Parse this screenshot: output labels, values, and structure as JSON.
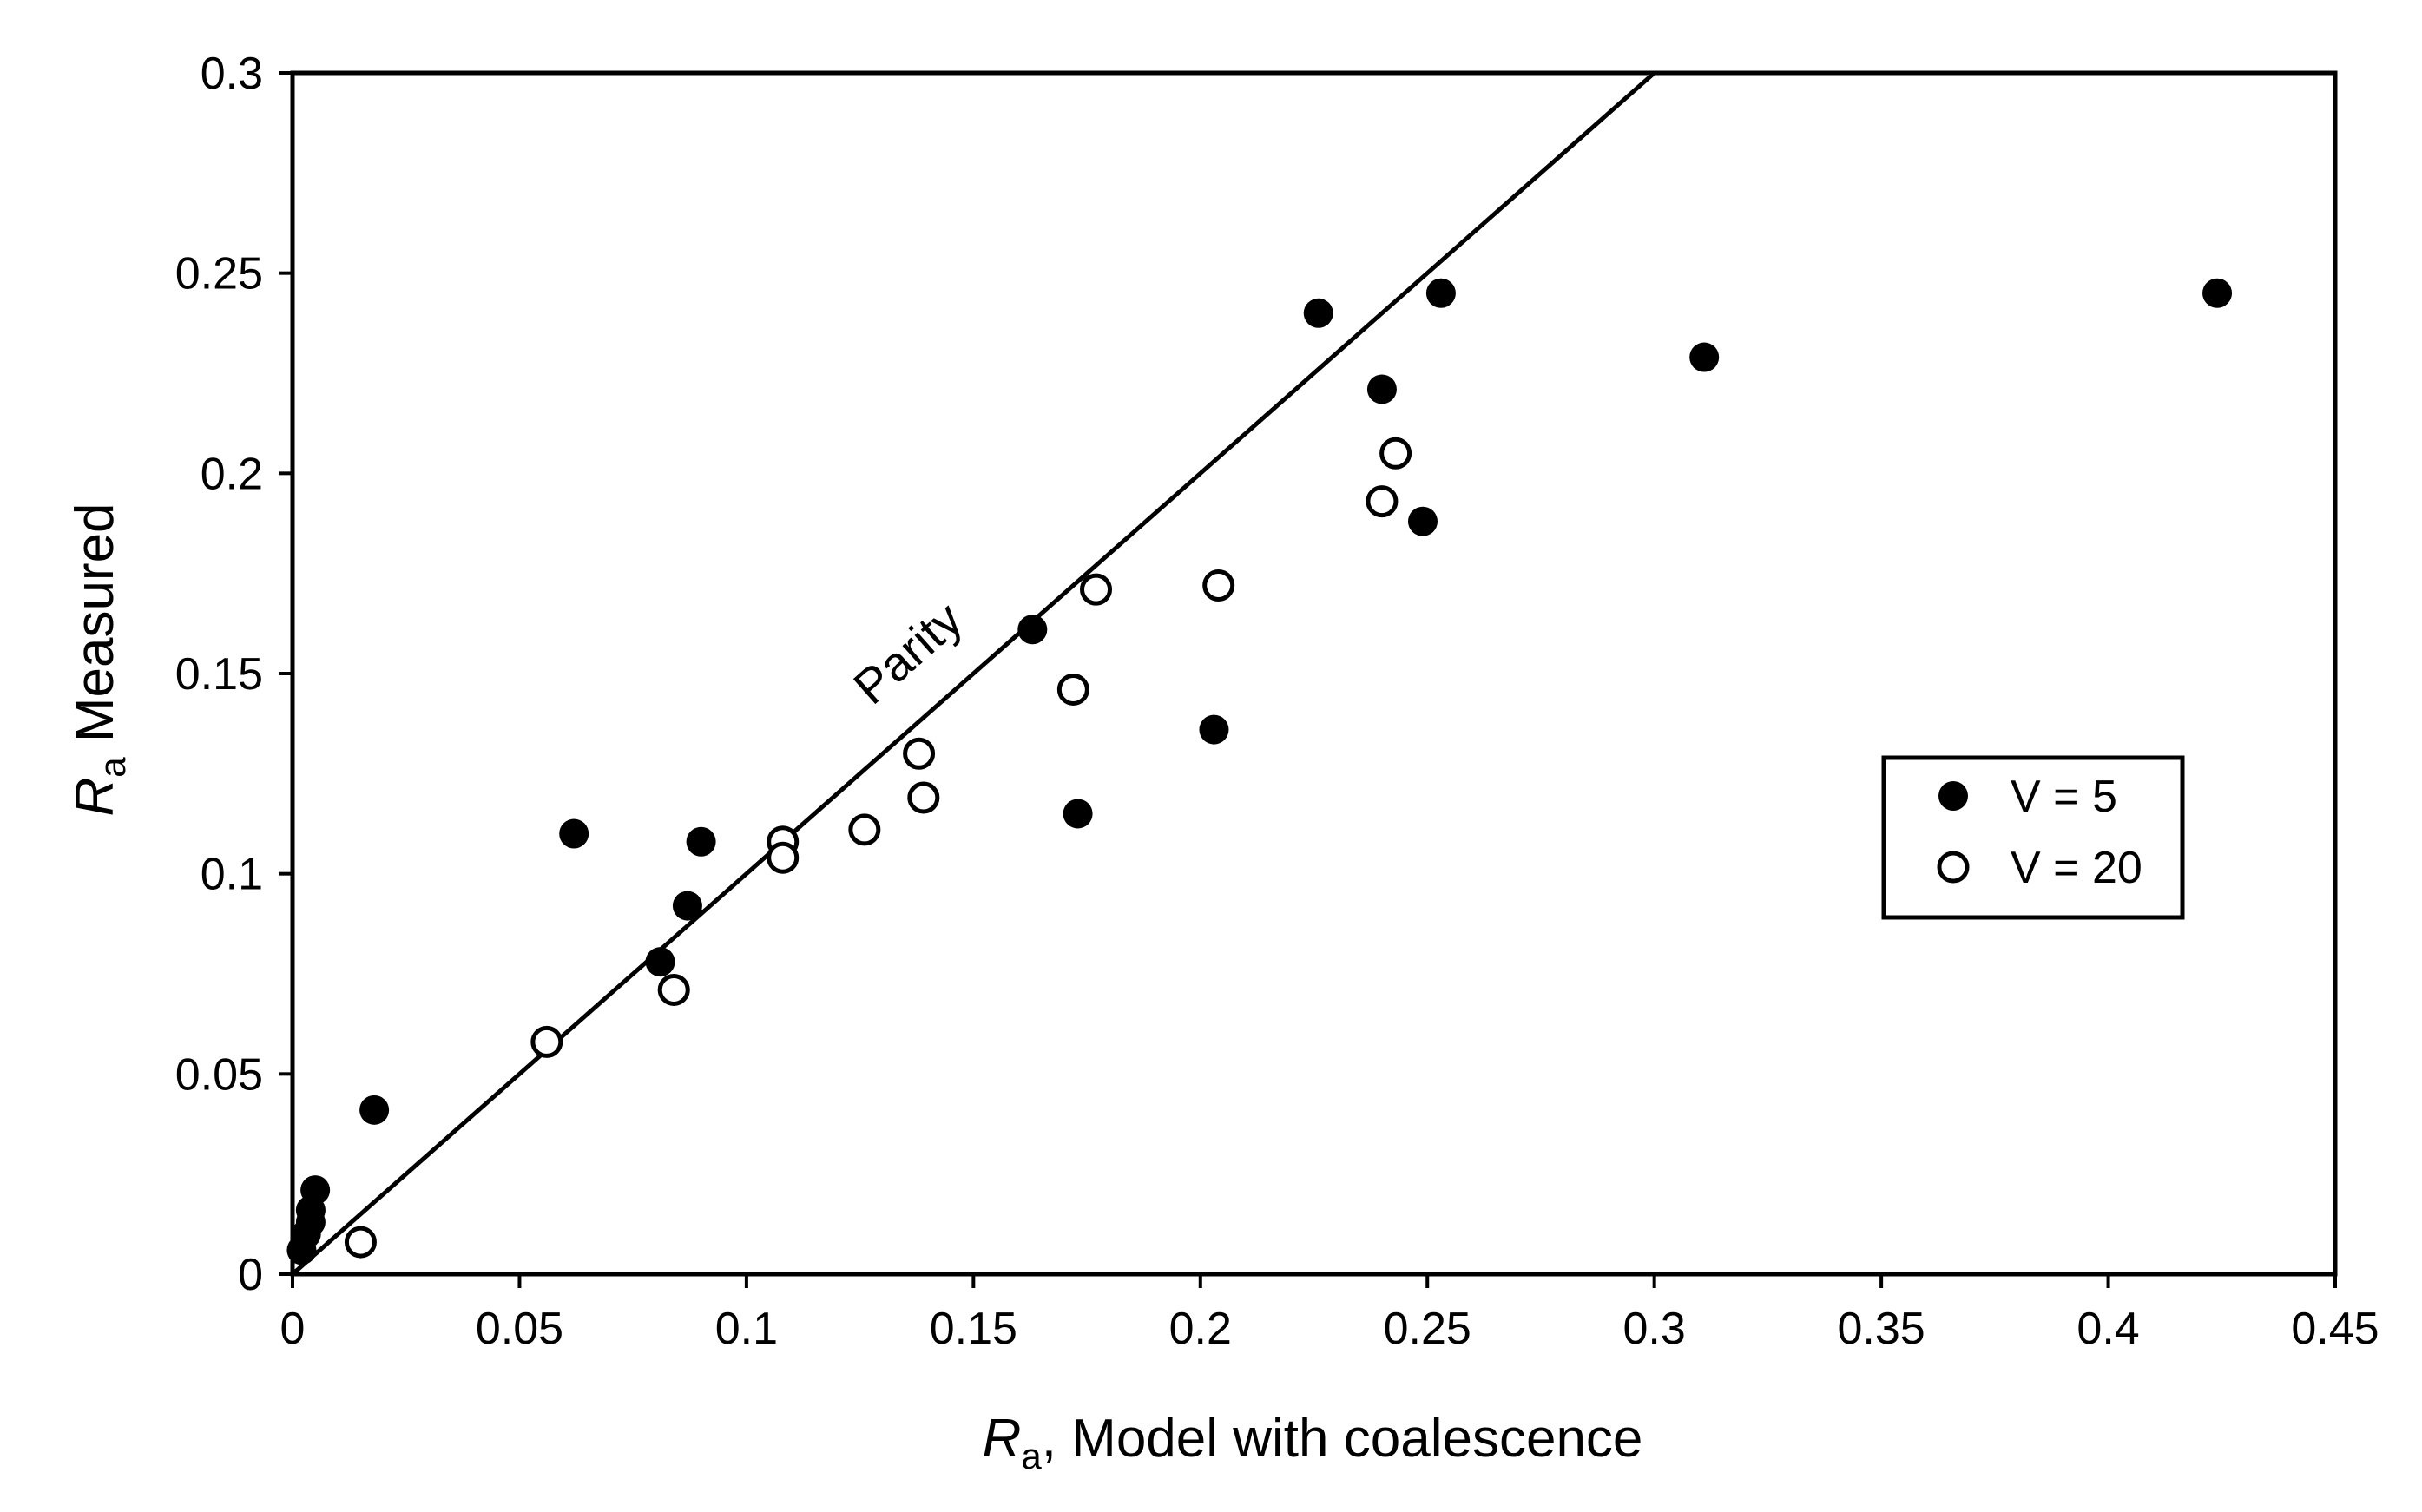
{
  "chart_data": {
    "type": "scatter",
    "title": "",
    "xlabel": {
      "symbol": "R",
      "subscript": "a",
      "rest": ", Model with coalescence"
    },
    "ylabel": {
      "symbol": "R",
      "subscript": "a",
      "rest": " Measured"
    },
    "xlim": [
      0,
      0.45
    ],
    "ylim": [
      0,
      0.3
    ],
    "xticks": [
      {
        "value": 0,
        "label": "0"
      },
      {
        "value": 0.05,
        "label": "0.05"
      },
      {
        "value": 0.1,
        "label": "0.1"
      },
      {
        "value": 0.15,
        "label": "0.15"
      },
      {
        "value": 0.2,
        "label": "0.2"
      },
      {
        "value": 0.25,
        "label": "0.25"
      },
      {
        "value": 0.3,
        "label": "0.3"
      },
      {
        "value": 0.35,
        "label": "0.35"
      },
      {
        "value": 0.4,
        "label": "0.4"
      },
      {
        "value": 0.45,
        "label": "0.45"
      }
    ],
    "yticks": [
      {
        "value": 0,
        "label": "0"
      },
      {
        "value": 0.05,
        "label": "0.05"
      },
      {
        "value": 0.1,
        "label": "0.1"
      },
      {
        "value": 0.15,
        "label": "0.15"
      },
      {
        "value": 0.2,
        "label": "0.2"
      },
      {
        "value": 0.25,
        "label": "0.25"
      },
      {
        "value": 0.3,
        "label": "0.3"
      }
    ],
    "grid": false,
    "legend_position": "right",
    "series": [
      {
        "name": "V = 5",
        "marker": "filled-circle",
        "color": "#000000",
        "points": [
          [
            0.002,
            0.006
          ],
          [
            0.003,
            0.01
          ],
          [
            0.004,
            0.013
          ],
          [
            0.004,
            0.016
          ],
          [
            0.005,
            0.021
          ],
          [
            0.018,
            0.041
          ],
          [
            0.062,
            0.11
          ],
          [
            0.081,
            0.078
          ],
          [
            0.087,
            0.092
          ],
          [
            0.09,
            0.108
          ],
          [
            0.163,
            0.161
          ],
          [
            0.173,
            0.115
          ],
          [
            0.203,
            0.136
          ],
          [
            0.226,
            0.24
          ],
          [
            0.24,
            0.221
          ],
          [
            0.249,
            0.188
          ],
          [
            0.253,
            0.245
          ],
          [
            0.311,
            0.229
          ],
          [
            0.424,
            0.245
          ]
        ]
      },
      {
        "name": "V = 20",
        "marker": "open-circle",
        "color": "#000000",
        "points": [
          [
            0.015,
            0.008
          ],
          [
            0.056,
            0.058
          ],
          [
            0.084,
            0.071
          ],
          [
            0.108,
            0.108
          ],
          [
            0.108,
            0.104
          ],
          [
            0.126,
            0.111
          ],
          [
            0.138,
            0.13
          ],
          [
            0.139,
            0.119
          ],
          [
            0.172,
            0.146
          ],
          [
            0.177,
            0.171
          ],
          [
            0.204,
            0.172
          ],
          [
            0.24,
            0.193
          ],
          [
            0.243,
            0.205
          ]
        ]
      }
    ],
    "reference_line": {
      "label": "Parity",
      "from": [
        0,
        0
      ],
      "to": [
        0.3,
        0.3
      ]
    }
  }
}
